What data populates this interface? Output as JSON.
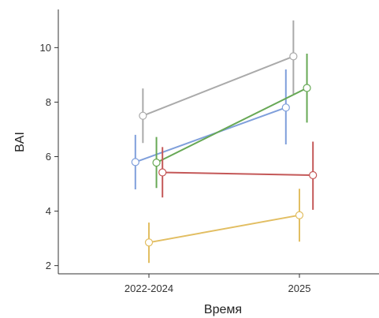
{
  "chart_data": {
    "type": "line",
    "title": "",
    "xlabel": "Время",
    "ylabel": "BAI",
    "categories": [
      "2022-2024",
      "2025"
    ],
    "ylim": [
      1.7,
      11.4
    ],
    "yticks": [
      2,
      4,
      6,
      8,
      10
    ],
    "grid": false,
    "legend": "none",
    "error_bars": true,
    "series": [
      {
        "color": "#aaaaaa",
        "x_offset": -0.04,
        "values": [
          7.5,
          9.68
        ],
        "lower": [
          6.5,
          8.3
        ],
        "upper": [
          8.5,
          11.0
        ]
      },
      {
        "color": "#7f9fdb",
        "x_offset": -0.09,
        "values": [
          5.8,
          7.8
        ],
        "lower": [
          4.8,
          6.45
        ],
        "upper": [
          6.8,
          9.2
        ]
      },
      {
        "color": "#67a855",
        "x_offset": 0.05,
        "values": [
          5.78,
          8.52
        ],
        "lower": [
          4.85,
          7.25
        ],
        "upper": [
          6.72,
          9.78
        ]
      },
      {
        "color": "#c45858",
        "x_offset": 0.09,
        "values": [
          5.42,
          5.32
        ],
        "lower": [
          4.5,
          4.05
        ],
        "upper": [
          6.35,
          6.55
        ]
      },
      {
        "color": "#e2be62",
        "x_offset": 0.0,
        "values": [
          2.85,
          3.85
        ],
        "lower": [
          2.1,
          2.88
        ],
        "upper": [
          3.58,
          4.82
        ]
      }
    ]
  }
}
